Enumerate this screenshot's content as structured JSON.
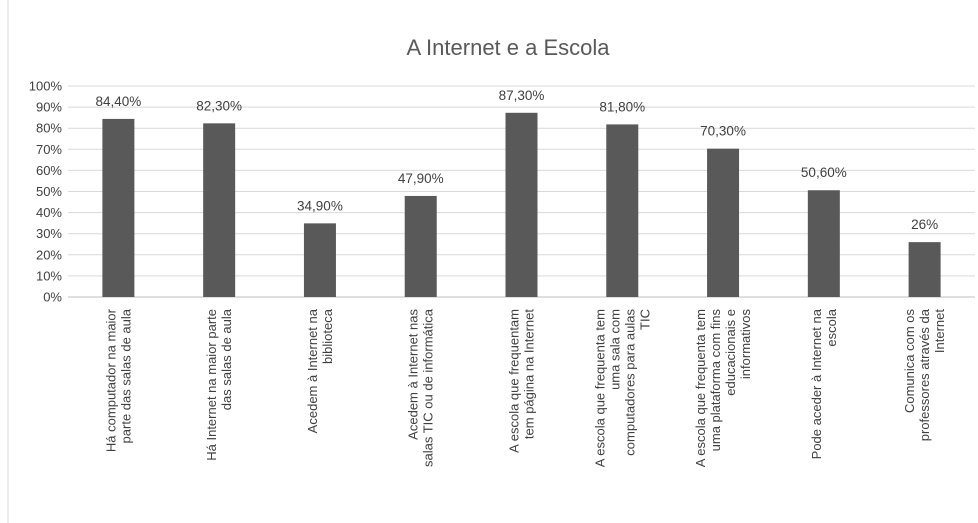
{
  "chart_data": {
    "type": "bar",
    "title": "A Internet e a Escola",
    "categories": [
      [
        "Há computador na maior",
        "parte das salas de aula"
      ],
      [
        "Há Internet na maior parte",
        "das salas de aula"
      ],
      [
        "Acedem à Internet na",
        "biblioteca"
      ],
      [
        "Acedem à Internet nas",
        "salas TIC ou de informática"
      ],
      [
        "A escola que frequentam",
        "tem página na Internet"
      ],
      [
        "A escola que frequenta tem",
        "uma sala com",
        "computadores para aulas",
        "TIC"
      ],
      [
        "A escola que frequenta tem",
        "uma plataforma com fins",
        "educacionais e",
        "informativos"
      ],
      [
        "Pode aceder à Internet na",
        "escola"
      ],
      [
        "Comunica com os",
        "professores através da",
        "Internet"
      ]
    ],
    "values": [
      84.4,
      82.3,
      34.9,
      47.9,
      87.3,
      81.8,
      70.3,
      50.6,
      26
    ],
    "data_labels": [
      "84,40%",
      "82,30%",
      "34,90%",
      "47,90%",
      "87,30%",
      "81,80%",
      "70,30%",
      "50,60%",
      "26%"
    ],
    "y_ticks": [
      "0%",
      "10%",
      "20%",
      "30%",
      "40%",
      "50%",
      "60%",
      "70%",
      "80%",
      "90%",
      "100%"
    ],
    "ylim": [
      0,
      100
    ],
    "grid": true,
    "bar_color": "#595959"
  }
}
